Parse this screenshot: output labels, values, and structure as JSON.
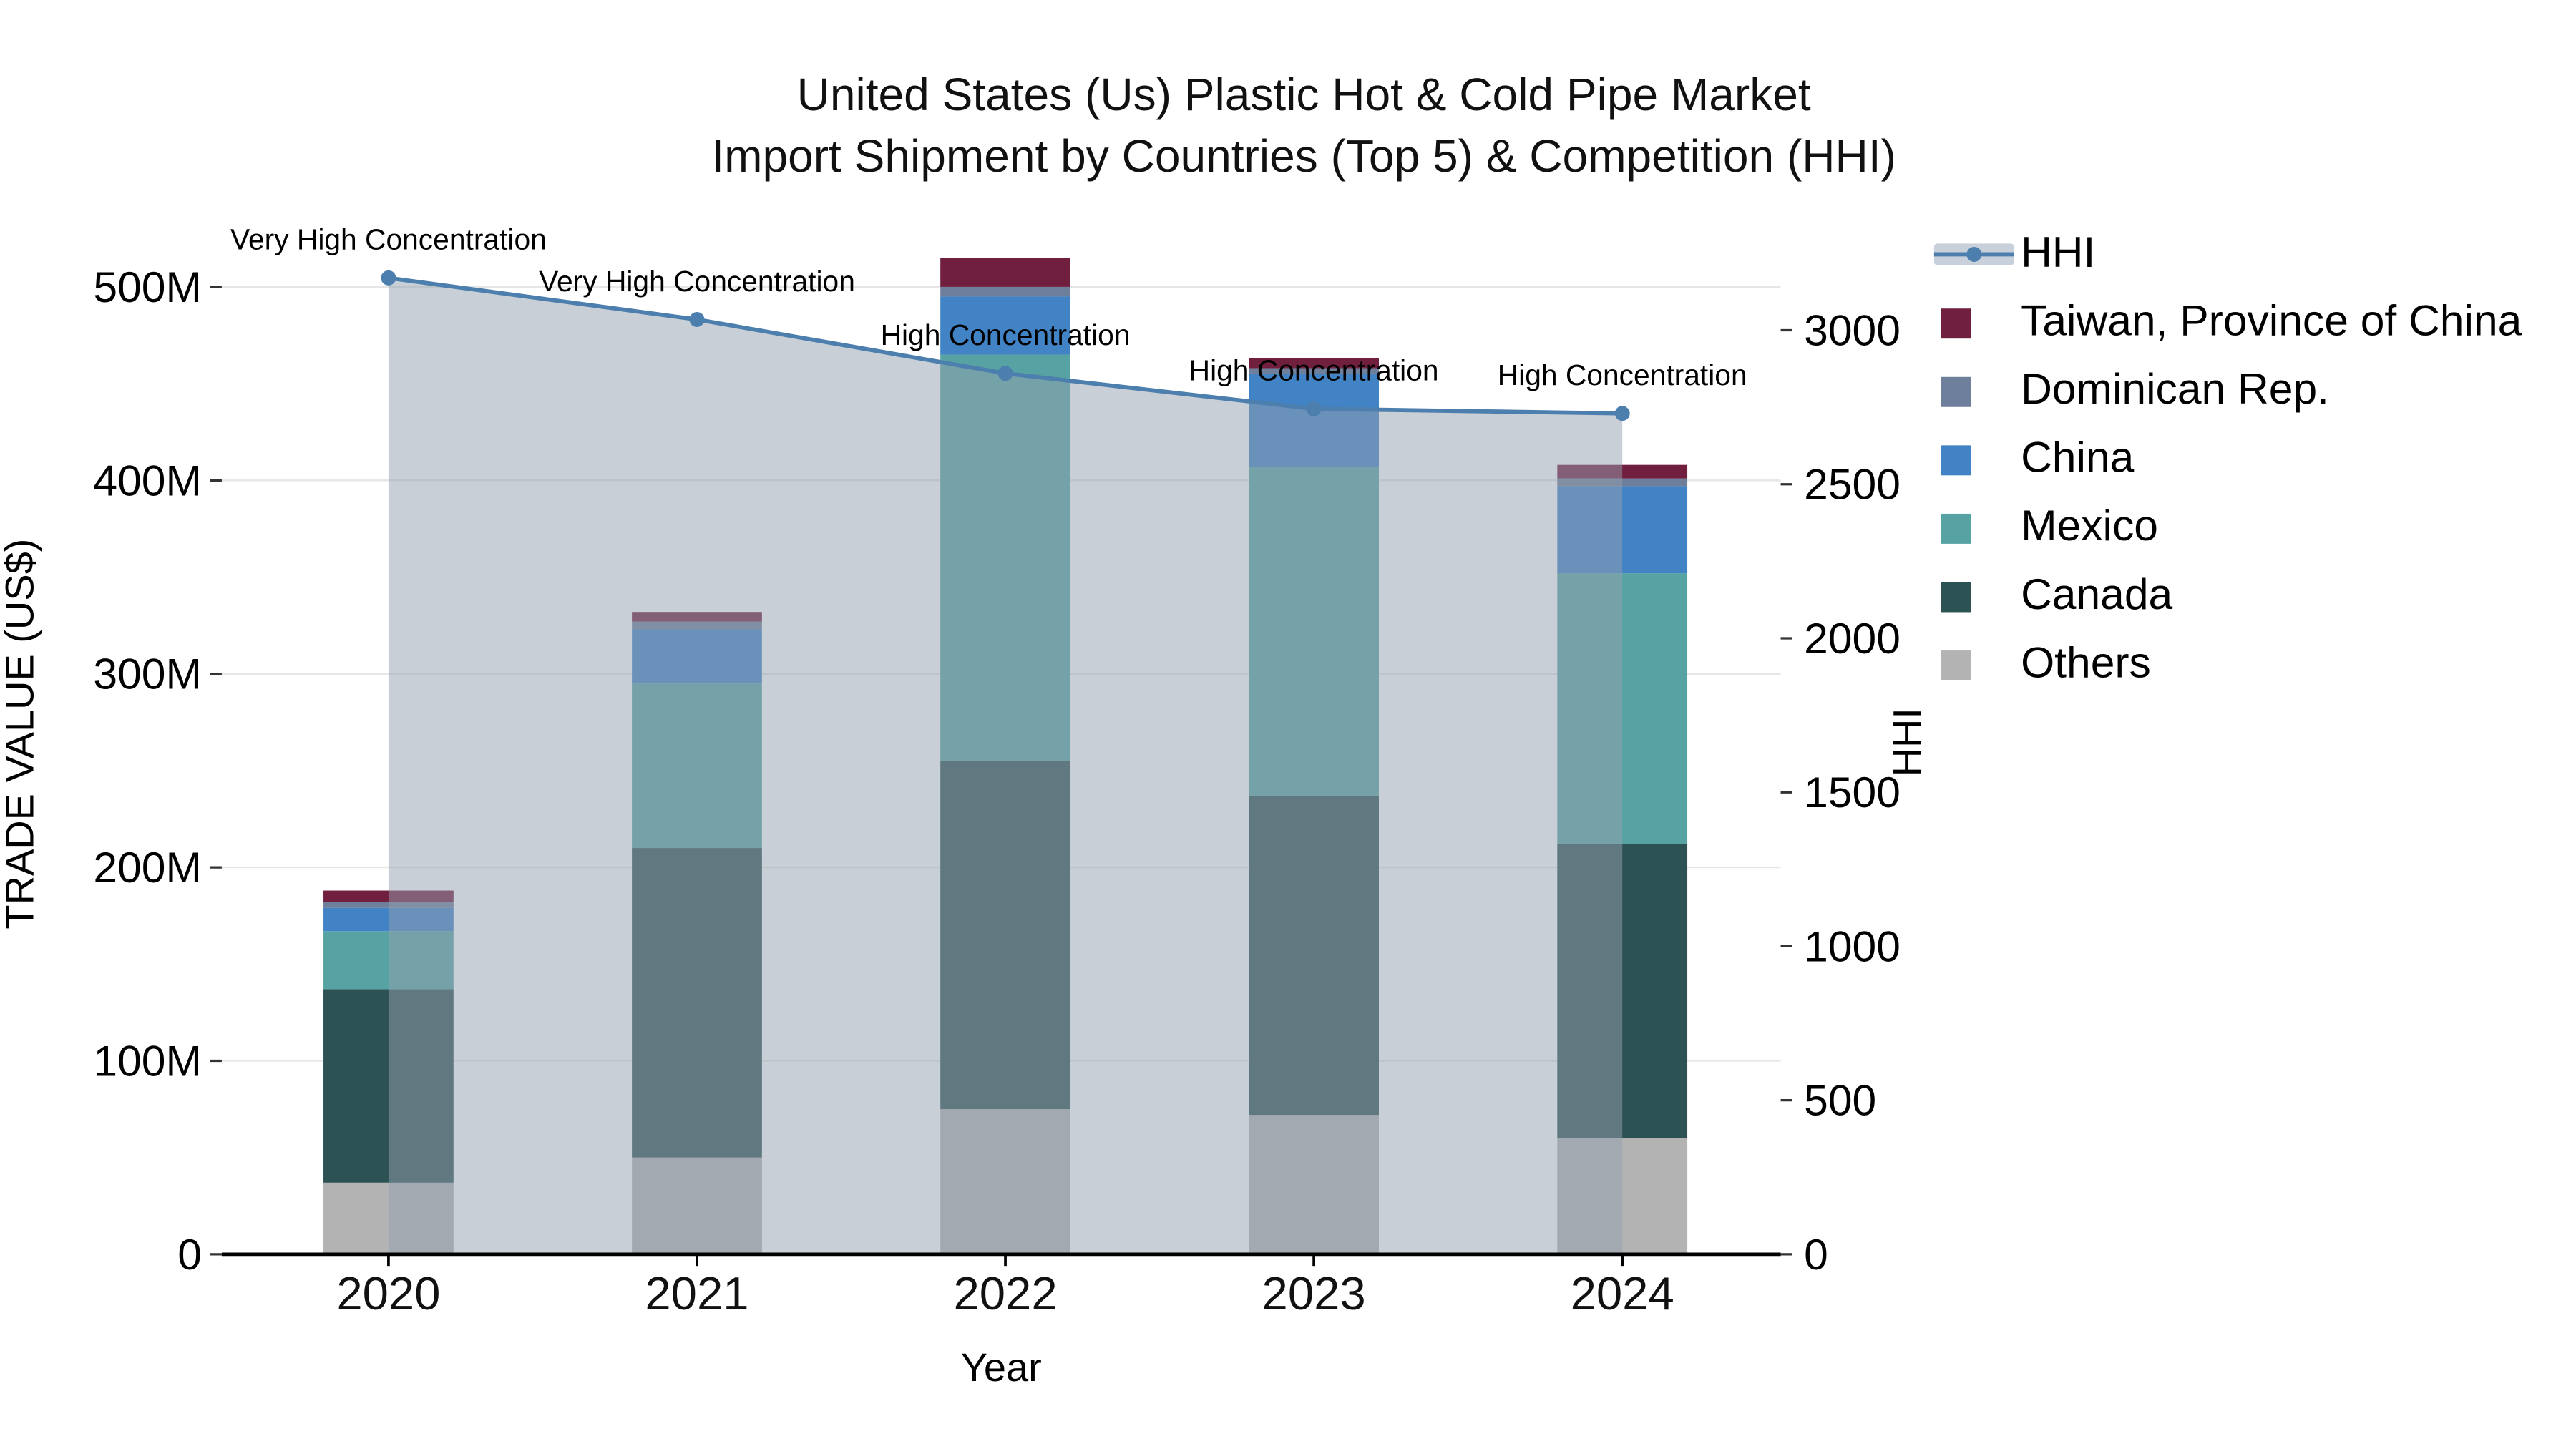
{
  "title": {
    "line1": "United States (Us) Plastic Hot & Cold Pipe Market",
    "line2": "Import Shipment by Countries (Top 5) & Competition (HHI)"
  },
  "axes": {
    "left": {
      "label": "TRADE VALUE (US$)",
      "ticks": [
        {
          "value": 0,
          "label": "0"
        },
        {
          "value": 100,
          "label": "100M"
        },
        {
          "value": 200,
          "label": "200M"
        },
        {
          "value": 300,
          "label": "300M"
        },
        {
          "value": 400,
          "label": "400M"
        },
        {
          "value": 500,
          "label": "500M"
        }
      ],
      "max": 500
    },
    "right": {
      "label": "HHI",
      "ticks": [
        {
          "value": 0,
          "label": "0"
        },
        {
          "value": 500,
          "label": "500"
        },
        {
          "value": 1000,
          "label": "1000"
        },
        {
          "value": 1500,
          "label": "1500"
        },
        {
          "value": 2000,
          "label": "2000"
        },
        {
          "value": 2500,
          "label": "2500"
        },
        {
          "value": 3000,
          "label": "3000"
        }
      ],
      "max": 3000
    },
    "x": {
      "label": "Year"
    }
  },
  "chart_data": {
    "type": "bar",
    "subtype": "stacked-bars-with-line-overlay",
    "categories": [
      "2020",
      "2021",
      "2022",
      "2023",
      "2024"
    ],
    "stack_unit": "USD millions",
    "series": [
      {
        "name": "Others",
        "color": "#b3b3b3",
        "values": [
          37,
          50,
          75,
          72,
          60
        ]
      },
      {
        "name": "Canada",
        "color": "#2d5254",
        "values": [
          100,
          160,
          180,
          165,
          152
        ]
      },
      {
        "name": "Mexico",
        "color": "#57a3a3",
        "values": [
          30,
          85,
          210,
          170,
          140
        ]
      },
      {
        "name": "China",
        "color": "#4183c4",
        "values": [
          12,
          28,
          30,
          48,
          45
        ]
      },
      {
        "name": "Dominican Rep.",
        "color": "#6d7f9b",
        "values": [
          3,
          4,
          5,
          3,
          4
        ]
      },
      {
        "name": "Taiwan, Province of China",
        "color": "#701f3e",
        "values": [
          6,
          5,
          15,
          5,
          7
        ]
      }
    ],
    "line_series": {
      "name": "HHI",
      "axis": "right",
      "color": "#4d7fae",
      "area_color": "#94a0ad",
      "area_opacity": 0.5,
      "values": [
        3170,
        3035,
        2860,
        2745,
        2730
      ]
    },
    "annotations": [
      "Very High Concentration",
      "Very High Concentration",
      "High Concentration",
      "High Concentration",
      "High Concentration"
    ],
    "ylim_left": [
      0,
      500
    ],
    "ylim_right": [
      0,
      3000
    ],
    "grid": "horizontal",
    "legend_position": "right"
  },
  "legend": {
    "items": [
      {
        "label": "HHI",
        "type": "line",
        "color": "#4d7fae",
        "swatch_bg": "#c7d0db"
      },
      {
        "label": "Taiwan, Province of China",
        "type": "square",
        "color": "#701f3e"
      },
      {
        "label": "Dominican Rep.",
        "type": "square",
        "color": "#6d7f9b"
      },
      {
        "label": "China",
        "type": "square",
        "color": "#4183c4"
      },
      {
        "label": "Mexico",
        "type": "square",
        "color": "#57a3a3"
      },
      {
        "label": "Canada",
        "type": "square",
        "color": "#2d5254"
      },
      {
        "label": "Others",
        "type": "square",
        "color": "#b3b3b3"
      }
    ]
  }
}
